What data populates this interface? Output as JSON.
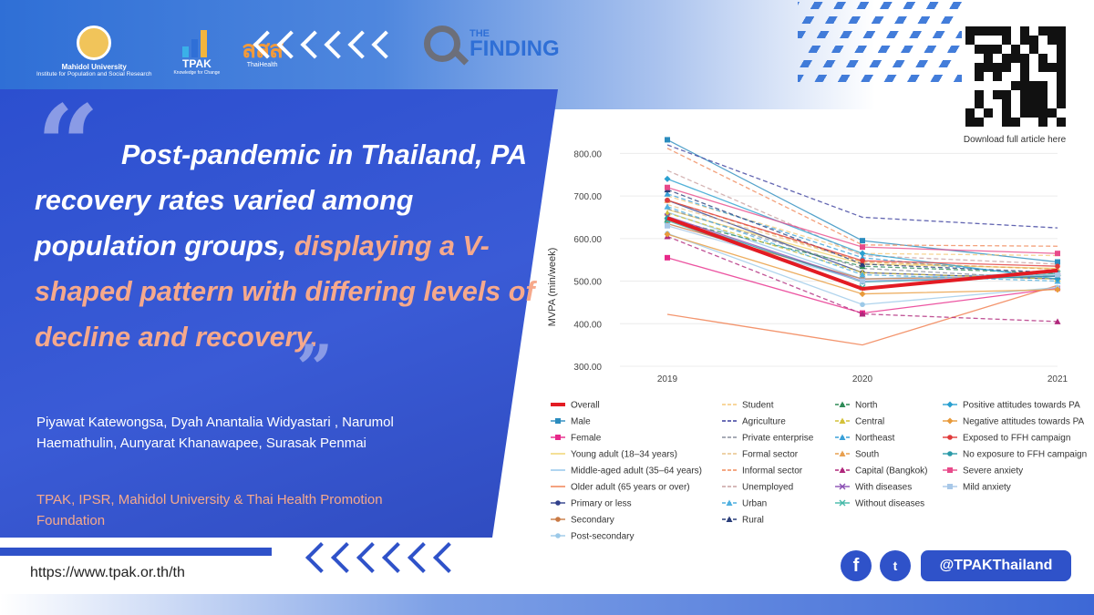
{
  "header": {
    "mahidol_name": "Mahidol University",
    "mahidol_sub": "Institute for Population and Social Research",
    "tpak_name": "TPAK",
    "tpak_sub": "Knowledge for Change",
    "sss_name": "สสส",
    "sss_sub": "ThaiHealth",
    "finding_the": "THE",
    "finding_main": "FINDING"
  },
  "qr": {
    "caption": "Download full article here"
  },
  "headline": {
    "part1": "Post-pandemic in Thailand, PA recovery rates varied among population groups, ",
    "part2": "displaying a V-shaped pattern with differing levels of decline and recovery."
  },
  "authors": "Piyawat Katewongsa, Dyah Anantalia Widyastari , Narumol Haemathulin, Aunyarat Khanawapee, Surasak Penmai",
  "affiliation": "TPAK, IPSR, Mahidol University & Thai Health Promotion Foundation",
  "footer": {
    "url": "https://www.tpak.or.th/th",
    "facebook_glyph": "f",
    "twitter_glyph": "t",
    "handle": "@TPAKThailand"
  },
  "chart_data": {
    "type": "line",
    "x": [
      "2019",
      "2020",
      "2021"
    ],
    "ylabel": "MVPA (min/week)",
    "ylim": [
      300,
      850
    ],
    "yticks": [
      "300.00",
      "400.00",
      "500.00",
      "600.00",
      "700.00",
      "800.00"
    ],
    "series": [
      {
        "name": "Overall",
        "values": [
          648,
          482,
          525
        ],
        "color": "#e31b23",
        "dash": false,
        "marker": "none",
        "bold": true
      },
      {
        "name": "Male",
        "values": [
          832,
          595,
          545
        ],
        "color": "#2b8cbe",
        "dash": false,
        "marker": "square"
      },
      {
        "name": "Female",
        "values": [
          555,
          425,
          483
        ],
        "color": "#e7298a",
        "dash": false,
        "marker": "square"
      },
      {
        "name": "Young adult (18–34 years)",
        "values": [
          668,
          540,
          530
        ],
        "color": "#f0d36a",
        "dash": false,
        "marker": "none"
      },
      {
        "name": "Middle-aged adult (35–64 years)",
        "values": [
          662,
          505,
          520
        ],
        "color": "#8fc3ea",
        "dash": false,
        "marker": "none"
      },
      {
        "name": "Older adult (65 years or over)",
        "values": [
          422,
          350,
          490
        ],
        "color": "#f07a4a",
        "dash": false,
        "marker": "none"
      },
      {
        "name": "Primary or less",
        "values": [
          690,
          520,
          505
        ],
        "color": "#31408c",
        "dash": false,
        "marker": "circle"
      },
      {
        "name": "Secondary",
        "values": [
          635,
          505,
          512
        ],
        "color": "#c97a45",
        "dash": false,
        "marker": "circle"
      },
      {
        "name": "Post-secondary",
        "values": [
          612,
          445,
          485
        ],
        "color": "#9cc9e8",
        "dash": false,
        "marker": "circle"
      },
      {
        "name": "Student",
        "values": [
          700,
          565,
          560
        ],
        "color": "#f5c97a",
        "dash": true,
        "marker": "none"
      },
      {
        "name": "Agriculture",
        "values": [
          820,
          650,
          625
        ],
        "color": "#3b3f9e",
        "dash": true,
        "marker": "none"
      },
      {
        "name": "Private enterprise",
        "values": [
          670,
          530,
          505
        ],
        "color": "#8a8f9e",
        "dash": true,
        "marker": "none"
      },
      {
        "name": "Formal sector",
        "values": [
          680,
          545,
          528
        ],
        "color": "#e9c48a",
        "dash": true,
        "marker": "none"
      },
      {
        "name": "Informal sector",
        "values": [
          812,
          585,
          582
        ],
        "color": "#f08a5a",
        "dash": true,
        "marker": "none"
      },
      {
        "name": "Unemployed",
        "values": [
          760,
          560,
          540
        ],
        "color": "#c9a0a0",
        "dash": true,
        "marker": "none"
      },
      {
        "name": "North",
        "values": [
          645,
          535,
          518
        ],
        "color": "#2e8b57",
        "dash": true,
        "marker": "triangle"
      },
      {
        "name": "Central",
        "values": [
          660,
          520,
          505
        ],
        "color": "#d4c13a",
        "dash": true,
        "marker": "triangle"
      },
      {
        "name": "Northeast",
        "values": [
          705,
          555,
          510
        ],
        "color": "#3aa0d8",
        "dash": true,
        "marker": "triangle"
      },
      {
        "name": "South",
        "values": [
          690,
          545,
          528
        ],
        "color": "#e8a050",
        "dash": true,
        "marker": "triangle"
      },
      {
        "name": "Capital (Bangkok)",
        "values": [
          605,
          423,
          405
        ],
        "color": "#b0287c",
        "dash": true,
        "marker": "triangle"
      },
      {
        "name": "With diseases",
        "values": [
          652,
          500,
          512
        ],
        "color": "#8a4fb3",
        "dash": false,
        "marker": "cross"
      },
      {
        "name": "Without diseases",
        "values": [
          642,
          485,
          518
        ],
        "color": "#44b8a8",
        "dash": false,
        "marker": "cross"
      },
      {
        "name": "Urban",
        "values": [
          675,
          515,
          500
        ],
        "color": "#4fb0e0",
        "dash": true,
        "marker": "triangle"
      },
      {
        "name": "Rural",
        "values": [
          715,
          540,
          520
        ],
        "color": "#2a3e7a",
        "dash": true,
        "marker": "triangle"
      },
      {
        "name": "Positive attitudes towards PA",
        "values": [
          740,
          565,
          505
        ],
        "color": "#2aa0d0",
        "dash": false,
        "marker": "diamond"
      },
      {
        "name": "Negative attitudes towards PA",
        "values": [
          610,
          470,
          480
        ],
        "color": "#e89a3a",
        "dash": false,
        "marker": "diamond"
      },
      {
        "name": "Exposed to FFH campaign",
        "values": [
          690,
          548,
          535
        ],
        "color": "#e03a3a",
        "dash": false,
        "marker": "circle"
      },
      {
        "name": "No exposure to FFH campaign",
        "values": [
          648,
          498,
          512
        ],
        "color": "#2a9aa8",
        "dash": false,
        "marker": "circle"
      },
      {
        "name": "Severe anxiety",
        "values": [
          720,
          580,
          565
        ],
        "color": "#e84a8a",
        "dash": false,
        "marker": "square"
      },
      {
        "name": "Mild anxiety",
        "values": [
          630,
          500,
          515
        ],
        "color": "#a8c8e8",
        "dash": false,
        "marker": "square"
      }
    ]
  }
}
